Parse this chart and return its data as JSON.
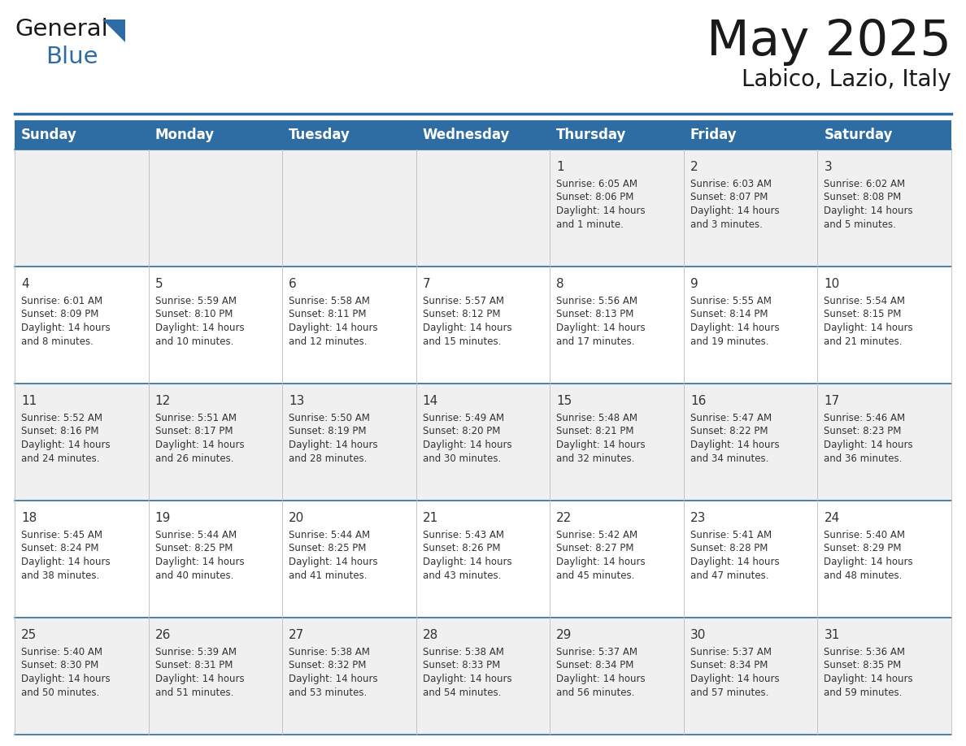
{
  "title": "May 2025",
  "subtitle": "Labico, Lazio, Italy",
  "header_bg": "#2E6DA4",
  "header_text_color": "#FFFFFF",
  "day_names": [
    "Sunday",
    "Monday",
    "Tuesday",
    "Wednesday",
    "Thursday",
    "Friday",
    "Saturday"
  ],
  "cell_bg_even": "#F0F0F0",
  "cell_bg_odd": "#FFFFFF",
  "divider_color": "#2E6DA4",
  "text_color": "#333333",
  "days": [
    {
      "day": 1,
      "col": 4,
      "row": 0,
      "sunrise": "6:05 AM",
      "sunset": "8:06 PM",
      "daylight": "14 hours and 1 minute."
    },
    {
      "day": 2,
      "col": 5,
      "row": 0,
      "sunrise": "6:03 AM",
      "sunset": "8:07 PM",
      "daylight": "14 hours and 3 minutes."
    },
    {
      "day": 3,
      "col": 6,
      "row": 0,
      "sunrise": "6:02 AM",
      "sunset": "8:08 PM",
      "daylight": "14 hours and 5 minutes."
    },
    {
      "day": 4,
      "col": 0,
      "row": 1,
      "sunrise": "6:01 AM",
      "sunset": "8:09 PM",
      "daylight": "14 hours and 8 minutes."
    },
    {
      "day": 5,
      "col": 1,
      "row": 1,
      "sunrise": "5:59 AM",
      "sunset": "8:10 PM",
      "daylight": "14 hours and 10 minutes."
    },
    {
      "day": 6,
      "col": 2,
      "row": 1,
      "sunrise": "5:58 AM",
      "sunset": "8:11 PM",
      "daylight": "14 hours and 12 minutes."
    },
    {
      "day": 7,
      "col": 3,
      "row": 1,
      "sunrise": "5:57 AM",
      "sunset": "8:12 PM",
      "daylight": "14 hours and 15 minutes."
    },
    {
      "day": 8,
      "col": 4,
      "row": 1,
      "sunrise": "5:56 AM",
      "sunset": "8:13 PM",
      "daylight": "14 hours and 17 minutes."
    },
    {
      "day": 9,
      "col": 5,
      "row": 1,
      "sunrise": "5:55 AM",
      "sunset": "8:14 PM",
      "daylight": "14 hours and 19 minutes."
    },
    {
      "day": 10,
      "col": 6,
      "row": 1,
      "sunrise": "5:54 AM",
      "sunset": "8:15 PM",
      "daylight": "14 hours and 21 minutes."
    },
    {
      "day": 11,
      "col": 0,
      "row": 2,
      "sunrise": "5:52 AM",
      "sunset": "8:16 PM",
      "daylight": "14 hours and 24 minutes."
    },
    {
      "day": 12,
      "col": 1,
      "row": 2,
      "sunrise": "5:51 AM",
      "sunset": "8:17 PM",
      "daylight": "14 hours and 26 minutes."
    },
    {
      "day": 13,
      "col": 2,
      "row": 2,
      "sunrise": "5:50 AM",
      "sunset": "8:19 PM",
      "daylight": "14 hours and 28 minutes."
    },
    {
      "day": 14,
      "col": 3,
      "row": 2,
      "sunrise": "5:49 AM",
      "sunset": "8:20 PM",
      "daylight": "14 hours and 30 minutes."
    },
    {
      "day": 15,
      "col": 4,
      "row": 2,
      "sunrise": "5:48 AM",
      "sunset": "8:21 PM",
      "daylight": "14 hours and 32 minutes."
    },
    {
      "day": 16,
      "col": 5,
      "row": 2,
      "sunrise": "5:47 AM",
      "sunset": "8:22 PM",
      "daylight": "14 hours and 34 minutes."
    },
    {
      "day": 17,
      "col": 6,
      "row": 2,
      "sunrise": "5:46 AM",
      "sunset": "8:23 PM",
      "daylight": "14 hours and 36 minutes."
    },
    {
      "day": 18,
      "col": 0,
      "row": 3,
      "sunrise": "5:45 AM",
      "sunset": "8:24 PM",
      "daylight": "14 hours and 38 minutes."
    },
    {
      "day": 19,
      "col": 1,
      "row": 3,
      "sunrise": "5:44 AM",
      "sunset": "8:25 PM",
      "daylight": "14 hours and 40 minutes."
    },
    {
      "day": 20,
      "col": 2,
      "row": 3,
      "sunrise": "5:44 AM",
      "sunset": "8:25 PM",
      "daylight": "14 hours and 41 minutes."
    },
    {
      "day": 21,
      "col": 3,
      "row": 3,
      "sunrise": "5:43 AM",
      "sunset": "8:26 PM",
      "daylight": "14 hours and 43 minutes."
    },
    {
      "day": 22,
      "col": 4,
      "row": 3,
      "sunrise": "5:42 AM",
      "sunset": "8:27 PM",
      "daylight": "14 hours and 45 minutes."
    },
    {
      "day": 23,
      "col": 5,
      "row": 3,
      "sunrise": "5:41 AM",
      "sunset": "8:28 PM",
      "daylight": "14 hours and 47 minutes."
    },
    {
      "day": 24,
      "col": 6,
      "row": 3,
      "sunrise": "5:40 AM",
      "sunset": "8:29 PM",
      "daylight": "14 hours and 48 minutes."
    },
    {
      "day": 25,
      "col": 0,
      "row": 4,
      "sunrise": "5:40 AM",
      "sunset": "8:30 PM",
      "daylight": "14 hours and 50 minutes."
    },
    {
      "day": 26,
      "col": 1,
      "row": 4,
      "sunrise": "5:39 AM",
      "sunset": "8:31 PM",
      "daylight": "14 hours and 51 minutes."
    },
    {
      "day": 27,
      "col": 2,
      "row": 4,
      "sunrise": "5:38 AM",
      "sunset": "8:32 PM",
      "daylight": "14 hours and 53 minutes."
    },
    {
      "day": 28,
      "col": 3,
      "row": 4,
      "sunrise": "5:38 AM",
      "sunset": "8:33 PM",
      "daylight": "14 hours and 54 minutes."
    },
    {
      "day": 29,
      "col": 4,
      "row": 4,
      "sunrise": "5:37 AM",
      "sunset": "8:34 PM",
      "daylight": "14 hours and 56 minutes."
    },
    {
      "day": 30,
      "col": 5,
      "row": 4,
      "sunrise": "5:37 AM",
      "sunset": "8:34 PM",
      "daylight": "14 hours and 57 minutes."
    },
    {
      "day": 31,
      "col": 6,
      "row": 4,
      "sunrise": "5:36 AM",
      "sunset": "8:35 PM",
      "daylight": "14 hours and 59 minutes."
    }
  ]
}
